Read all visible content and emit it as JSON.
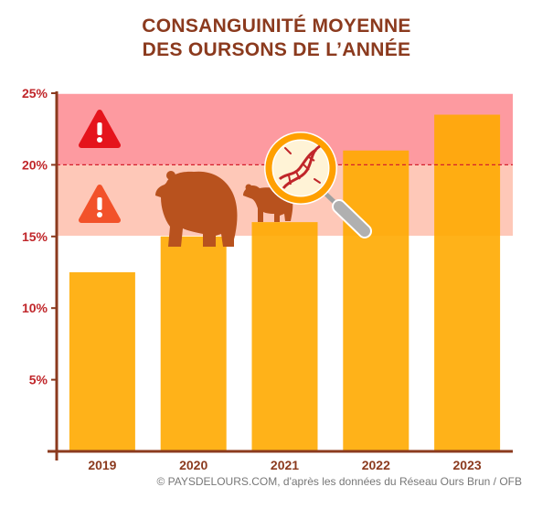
{
  "title": {
    "line1": "CONSANGUINITÉ MOYENNE",
    "line2": "DES OURSONS DE L’ANNÉE"
  },
  "credit": "© PAYSDELOURS.COM, d'après les données du Réseau Ours Brun / OFB",
  "colors": {
    "title": "#8b3a1e",
    "bar": "#ffaa00",
    "danger_zone": "#fd9aa0",
    "warning_zone": "#fec8b8",
    "axis": "#8b3a1e",
    "tick_label": "#c0262a",
    "threshold_line": "#d4202c",
    "danger_icon": "#e5141c",
    "warning_icon": "#f2522a",
    "bear": "#b8521e"
  },
  "icons": [
    "danger-warning-icon",
    "caution-warning-icon",
    "adult-bear-icon",
    "bear-cub-icon",
    "dna-magnifier-icon"
  ],
  "chart_data": {
    "type": "bar",
    "categories": [
      "2019",
      "2020",
      "2021",
      "2022",
      "2023"
    ],
    "values": [
      12.5,
      15.0,
      16.0,
      21.0,
      23.5
    ],
    "title": "CONSANGUINITÉ MOYENNE DES OURSONS DE L’ANNÉE",
    "xlabel": "",
    "ylabel": "",
    "ylim": [
      0,
      25
    ],
    "yticks": [
      5,
      10,
      15,
      20,
      25
    ],
    "ytick_labels": [
      "5%",
      "10%",
      "15%",
      "20%",
      "25%"
    ],
    "grid": true,
    "zones": [
      {
        "from": 15,
        "to": 20,
        "level": "warning"
      },
      {
        "from": 20,
        "to": 25,
        "level": "danger"
      }
    ],
    "threshold": 20,
    "legend": "none"
  }
}
